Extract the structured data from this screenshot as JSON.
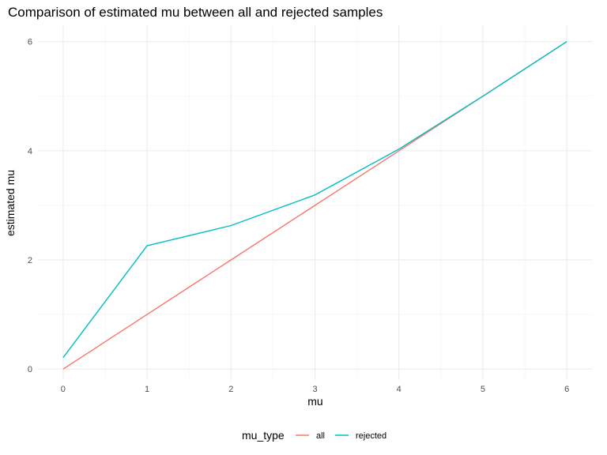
{
  "chart_data": {
    "type": "line",
    "title": "Comparison of estimated mu between all and rejected samples",
    "xlabel": "mu",
    "ylabel": "estimated mu",
    "xlim": [
      -0.3,
      6.3
    ],
    "ylim": [
      -0.2,
      6.3
    ],
    "x_ticks": [
      0,
      1,
      2,
      3,
      4,
      5,
      6
    ],
    "y_ticks": [
      0,
      2,
      4,
      6
    ],
    "x_tick_labels": [
      "0",
      "1",
      "2",
      "3",
      "4",
      "5",
      "6"
    ],
    "y_tick_labels": [
      "0",
      "2",
      "4",
      "6"
    ],
    "grid": true,
    "legend": {
      "position": "bottom",
      "title": "mu_type"
    },
    "x": [
      0,
      1,
      2,
      3,
      4,
      5,
      6
    ],
    "series": [
      {
        "name": "all",
        "color": "#F8766D",
        "values": [
          0.0,
          1.0,
          2.0,
          3.0,
          4.0,
          5.0,
          6.0
        ]
      },
      {
        "name": "rejected",
        "color": "#00BFC4",
        "values": [
          0.21,
          2.26,
          2.63,
          3.19,
          4.03,
          5.0,
          6.0
        ]
      }
    ]
  }
}
